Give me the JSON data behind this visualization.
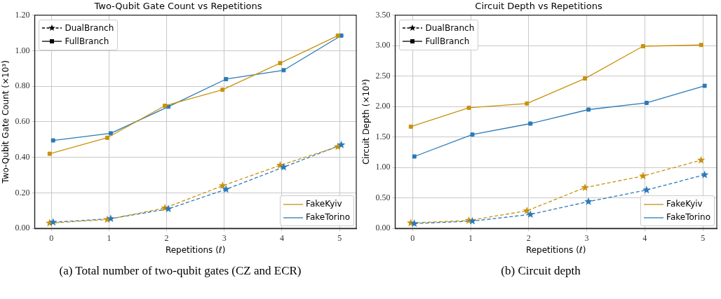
{
  "chart_data": [
    {
      "type": "line",
      "title": "Two-Qubit Gate Count vs Repetitions",
      "xlabel": "Repetitions (ℓ)",
      "ylabel": "Two-Qubit Gate Count (×10³)",
      "xlim": [
        -0.29,
        5.29
      ],
      "xticks": [
        0,
        1,
        2,
        3,
        4,
        5
      ],
      "ylim": [
        0,
        1.2
      ],
      "yticks": [
        {
          "value": 0,
          "label": "0.00"
        },
        {
          "value": 0.2,
          "label": "0.20"
        },
        {
          "value": 0.4,
          "label": "0.40"
        },
        {
          "value": 0.6,
          "label": "0.60"
        },
        {
          "value": 0.8,
          "label": "0.80"
        },
        {
          "value": 1,
          "label": "1.00"
        },
        {
          "value": 1.2,
          "label": "1.20"
        }
      ],
      "grid": true,
      "legend": "bottom right",
      "annotations": [
        "DualBranch",
        "FullBranch",
        "(a) Total number of two-qubit gates (CZ and ECR)"
      ],
      "series": [
        {
          "color": "#c8920e",
          "marker": "star",
          "line_style": "dashed",
          "x": [
            -0.03,
            0.97,
            1.97,
            2.97,
            3.97,
            4.97
          ],
          "values": [
            0.03,
            0.05,
            0.115,
            0.24,
            0.355,
            0.46
          ]
        },
        {
          "name": "FakeKyiv",
          "color": "#c8920e",
          "marker": "square",
          "line_style": "solid",
          "x": [
            -0.03,
            0.97,
            1.97,
            2.97,
            3.97,
            4.97
          ],
          "values": [
            0.42,
            0.51,
            0.69,
            0.78,
            0.93,
            1.085
          ]
        },
        {
          "color": "#2a7ab9",
          "marker": "star",
          "line_style": "dashed",
          "x": [
            0.03,
            1.03,
            2.03,
            3.03,
            4.03,
            5.03
          ],
          "values": [
            0.035,
            0.055,
            0.11,
            0.22,
            0.345,
            0.47
          ]
        },
        {
          "name": "FakeTorino",
          "color": "#2a7ab9",
          "marker": "square",
          "line_style": "solid",
          "x": [
            0.03,
            1.03,
            2.03,
            3.03,
            4.03,
            5.03
          ],
          "values": [
            0.495,
            0.535,
            0.685,
            0.84,
            0.89,
            1.085
          ]
        }
      ]
    },
    {
      "type": "line",
      "title": "Circuit Depth vs Repetitions",
      "xlabel": "Repetitions (ℓ)",
      "ylabel": "Circuit Depth (×10³)",
      "xlim": [
        -0.3,
        5.24
      ],
      "xticks": [
        0,
        1,
        2,
        3,
        4,
        5
      ],
      "ylim": [
        0,
        3.5
      ],
      "yticks": [
        {
          "value": 0,
          "label": "0.00"
        },
        {
          "value": 0.5,
          "label": "0.50"
        },
        {
          "value": 1,
          "label": "1.00"
        },
        {
          "value": 1.5,
          "label": "1.50"
        },
        {
          "value": 2,
          "label": "2.00"
        },
        {
          "value": 2.5,
          "label": "2.50"
        },
        {
          "value": 3,
          "label": "3.00"
        },
        {
          "value": 3.5,
          "label": "3.50"
        }
      ],
      "grid": true,
      "legend": "bottom right",
      "annotations": [
        "DualBranch",
        "FullBranch",
        "(b) Circuit depth"
      ],
      "series": [
        {
          "color": "#c8920e",
          "marker": "star",
          "line_style": "dashed",
          "x": [
            -0.03,
            0.97,
            1.97,
            2.97,
            3.97,
            4.97
          ],
          "values": [
            0.09,
            0.13,
            0.29,
            0.67,
            0.86,
            1.12
          ]
        },
        {
          "name": "FakeKyiv",
          "color": "#c8920e",
          "marker": "square",
          "line_style": "solid",
          "x": [
            -0.03,
            0.97,
            1.97,
            2.97,
            3.97,
            4.97
          ],
          "values": [
            1.67,
            1.98,
            2.05,
            2.46,
            2.99,
            3.01
          ]
        },
        {
          "color": "#2a7ab9",
          "marker": "star",
          "line_style": "dashed",
          "x": [
            0.03,
            1.03,
            2.03,
            3.03,
            4.03,
            5.03
          ],
          "values": [
            0.08,
            0.12,
            0.23,
            0.44,
            0.63,
            0.88
          ]
        },
        {
          "name": "FakeTorino",
          "color": "#2a7ab9",
          "marker": "square",
          "line_style": "solid",
          "x": [
            0.03,
            1.03,
            2.03,
            3.03,
            4.03,
            5.03
          ],
          "values": [
            1.18,
            1.54,
            1.72,
            1.95,
            2.06,
            2.34
          ]
        }
      ]
    }
  ]
}
